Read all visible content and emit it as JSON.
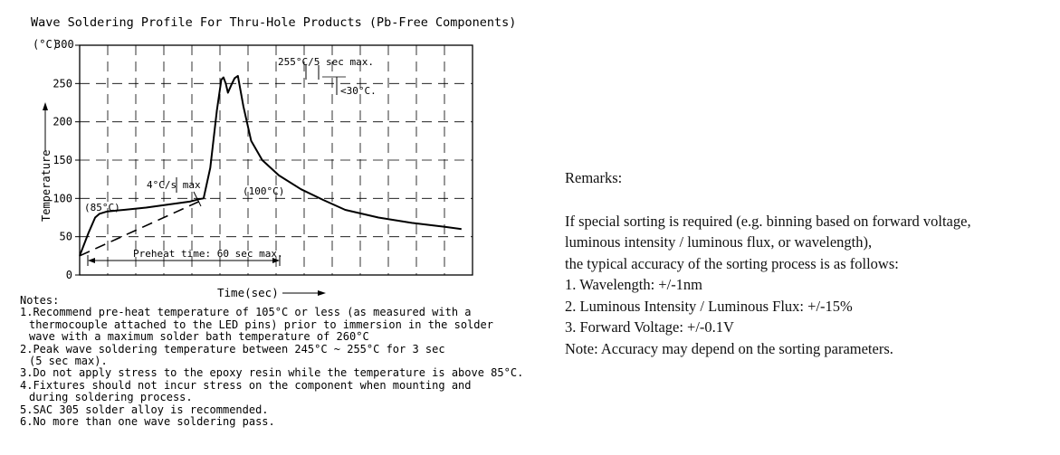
{
  "chart_data": {
    "type": "line",
    "title": "Wave Soldering Profile For Thru-Hole Products (Pb-Free Components)",
    "xlabel": "Time(sec)",
    "ylabel": "Temperature",
    "y_unit_label": "(°C)",
    "yticks": [
      "0",
      "50",
      "100",
      "150",
      "200",
      "250",
      "300"
    ],
    "ylim": [
      0,
      300
    ],
    "grid": "dashed",
    "series": [
      {
        "x": [
          0,
          8,
          14,
          18,
          25,
          40,
          60,
          80,
          100,
          108,
          112,
          118,
          124,
          128,
          130,
          132,
          134,
          137,
          140,
          143,
          148,
          155,
          165,
          180,
          200,
          220,
          240,
          270,
          300,
          330,
          345
        ],
        "y": [
          25,
          55,
          75,
          80,
          83,
          85,
          88,
          92,
          96,
          99,
          100,
          140,
          215,
          255,
          258,
          250,
          238,
          248,
          257,
          260,
          220,
          175,
          150,
          130,
          112,
          98,
          85,
          75,
          68,
          63,
          60
        ]
      },
      {
        "x": [
          0,
          114
        ],
        "y": [
          25,
          100
        ]
      }
    ],
    "annotations": [
      "(85°C)",
      "4°C/s max",
      "(100°C)",
      "255°C/5 sec max.",
      "<30°C.",
      "Preheat time: 60 sec max."
    ]
  },
  "notes": {
    "heading": "Notes:",
    "items": [
      {
        "first": "1.Recommend pre-heat temperature of 105°C or less (as measured with a",
        "rest": [
          "thermocouple attached to the LED pins) prior to immersion in the solder",
          "wave with a maximum solder bath temperature of 260°C"
        ]
      },
      {
        "first": "2.Peak wave soldering temperature between 245°C ~ 255°C for 3 sec",
        "rest": [
          "(5 sec max)."
        ]
      },
      {
        "first": "3.Do not apply stress to the epoxy resin while the temperature is above 85°C.",
        "rest": []
      },
      {
        "first": "4.Fixtures should not incur stress on the component when mounting and",
        "rest": [
          "during soldering process."
        ]
      },
      {
        "first": "5.SAC 305 solder alloy is recommended.",
        "rest": []
      },
      {
        "first": "6.No more than one wave soldering pass.",
        "rest": []
      }
    ]
  },
  "remarks": {
    "title": "Remarks:",
    "lines": [
      "If special sorting is required (e.g. binning based on forward voltage,",
      "luminous intensity / luminous flux, or wavelength),",
      "the typical accuracy of the sorting process is as follows:",
      "1. Wavelength: +/-1nm",
      "2. Luminous Intensity / Luminous Flux: +/-15%",
      "3. Forward Voltage: +/-0.1V",
      "Note: Accuracy may depend on the sorting parameters."
    ]
  }
}
